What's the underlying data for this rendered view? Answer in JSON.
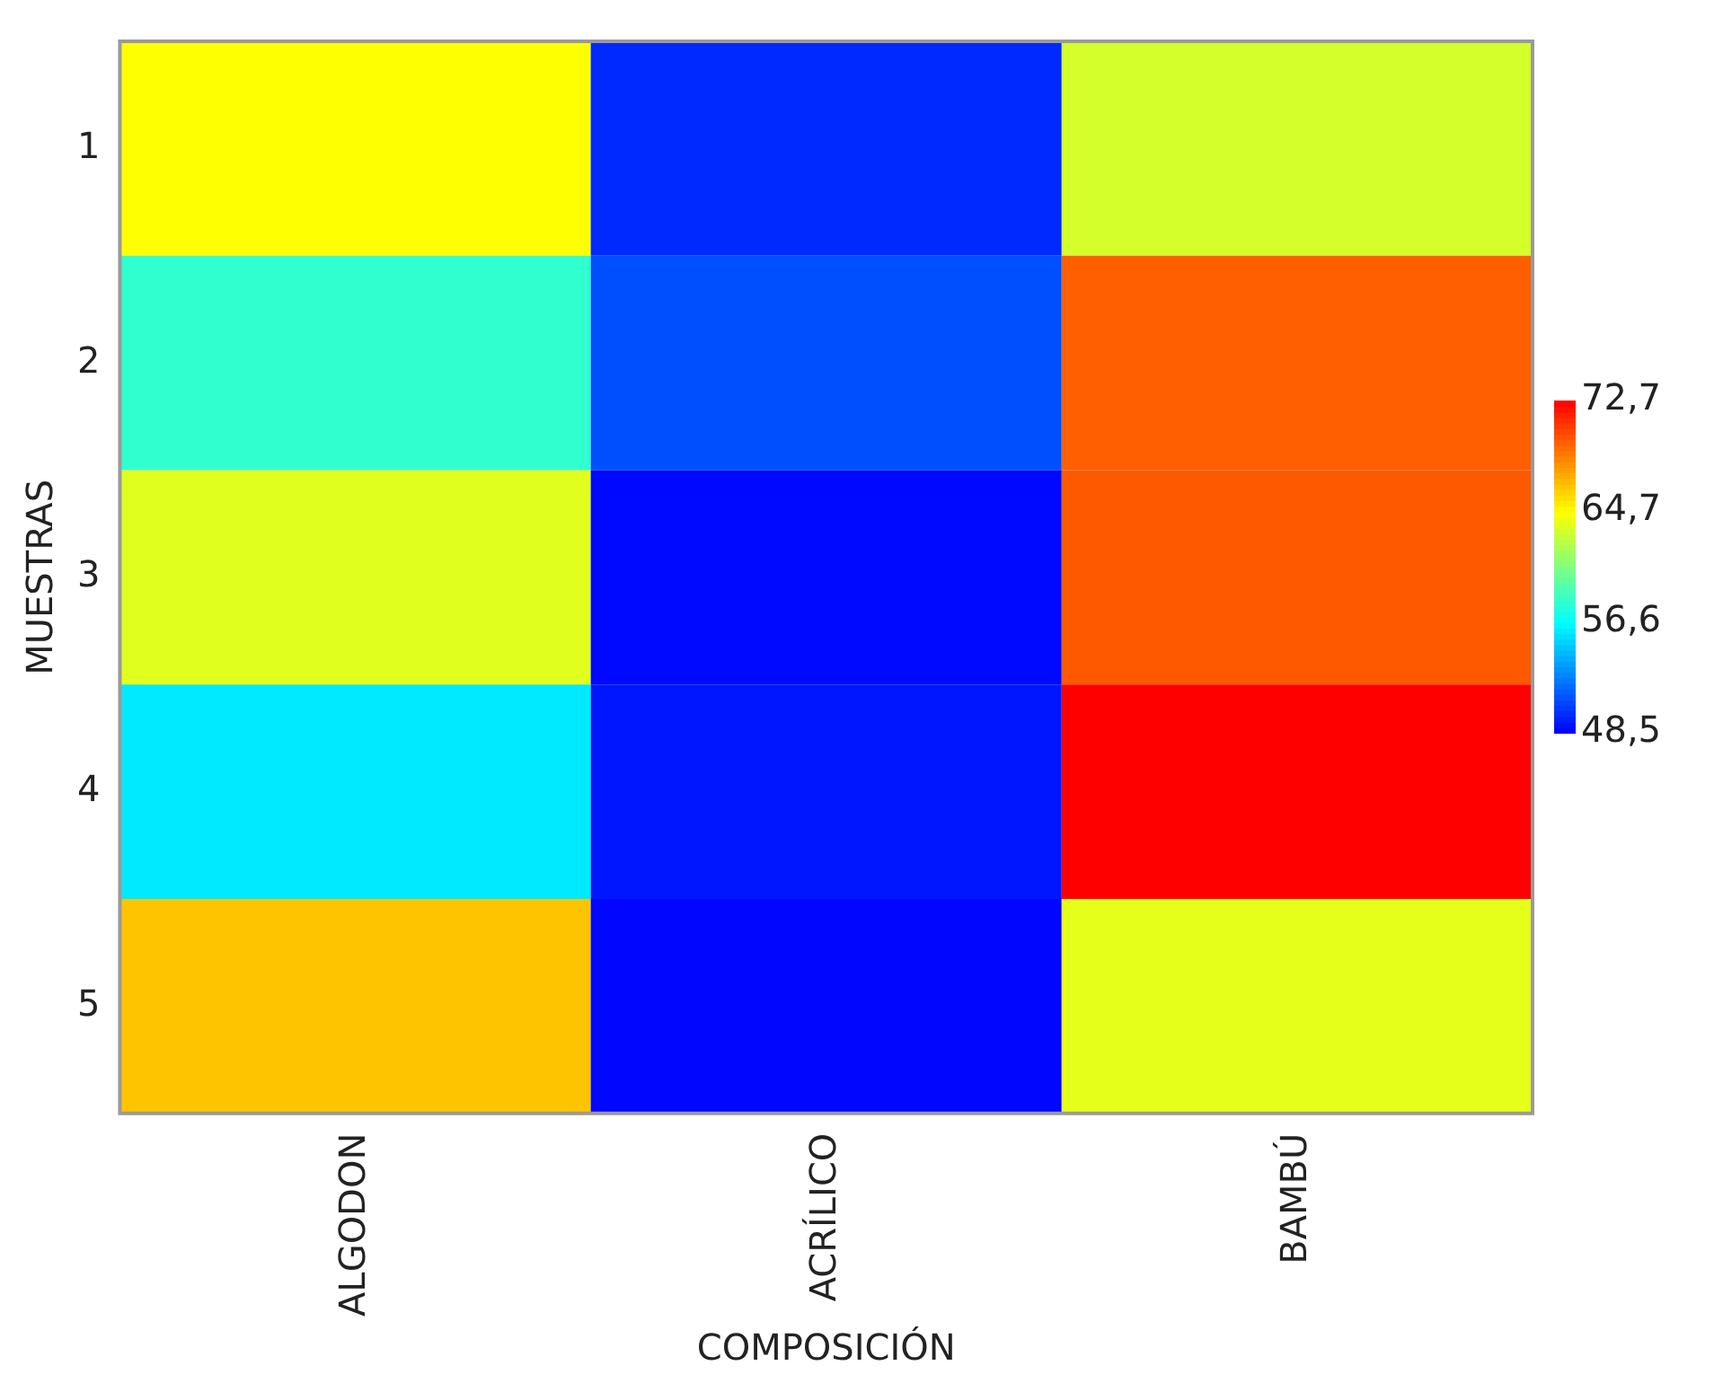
{
  "chart_data": {
    "type": "heatmap",
    "xlabel": "COMPOSICIÓN",
    "ylabel": "MUESTRAS",
    "categories": [
      "ALGODON",
      "ACRÍLICO",
      "BAMBÚ"
    ],
    "y_categories": [
      "1",
      "2",
      "3",
      "4",
      "5"
    ],
    "cells": [
      [
        64.6,
        49.8,
        63.3
      ],
      [
        58.1,
        51.0,
        69.7
      ],
      [
        63.7,
        48.8,
        69.9
      ],
      [
        55.9,
        49.2,
        72.7
      ],
      [
        66.5,
        48.7,
        63.8
      ]
    ],
    "clim": [
      48.5,
      72.7
    ],
    "cticks": [
      {
        "value": 48.5,
        "label": "48,5"
      },
      {
        "value": 56.6,
        "label": "56,6"
      },
      {
        "value": 64.7,
        "label": "64,7"
      },
      {
        "value": 72.7,
        "label": "72,7"
      }
    ]
  }
}
